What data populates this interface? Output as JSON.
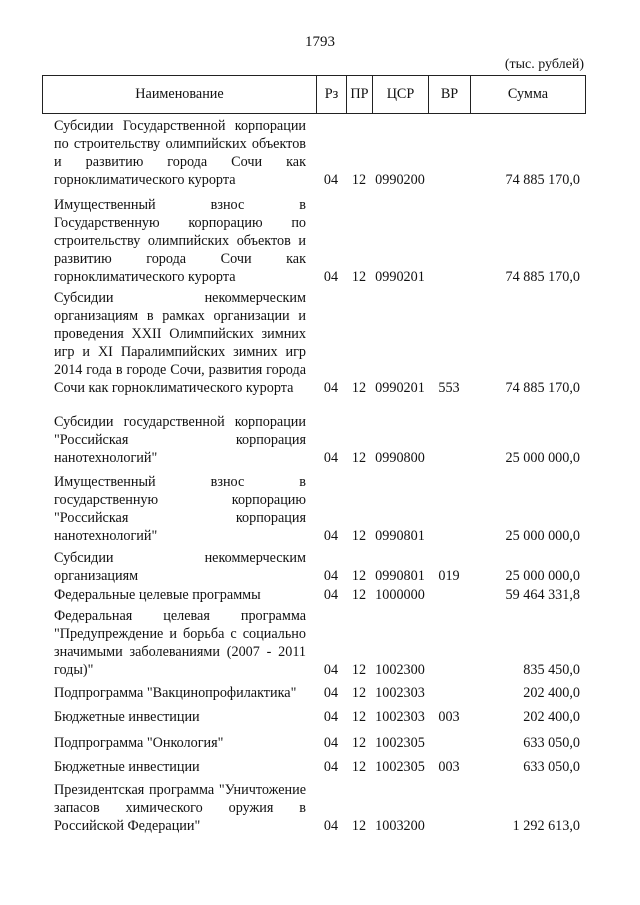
{
  "page_number": "1793",
  "units": "(тыс. рублей)",
  "table": {
    "headers": {
      "name": "Наименование",
      "rz": "Рз",
      "pr": "ПР",
      "csr": "ЦСР",
      "vr": "ВР",
      "sum": "Сумма"
    },
    "rows": [
      {
        "name": "Субсидии Государственной корпорации по строительству олимпийских объектов и развитию города Сочи как горноклиматического курорта",
        "rz": "04",
        "pr": "12",
        "csr": "0990200",
        "vr": "",
        "sum": "74 885 170,0"
      },
      {
        "name": "Имущественный взнос в Государственную корпорацию по строительству олимпийских объектов и развитию города Сочи как горноклиматического курорта",
        "rz": "04",
        "pr": "12",
        "csr": "0990201",
        "vr": "",
        "sum": "74 885 170,0"
      },
      {
        "name": "Субсидии некоммерческим организациям в рамках организации и проведения XXII Олимпийских зимних игр и XI Паралимпийских зимних игр 2014 года в городе Сочи, развития города Сочи как горноклиматического курорта",
        "rz": "04",
        "pr": "12",
        "csr": "0990201",
        "vr": "553",
        "sum": "74 885 170,0"
      },
      {
        "name": "Субсидии государственной корпорации \"Российская корпорация нанотехнологий\"",
        "rz": "04",
        "pr": "12",
        "csr": "0990800",
        "vr": "",
        "sum": "25 000 000,0"
      },
      {
        "name": "Имущественный взнос в государственную корпорацию \"Российская корпорация нанотехнологий\"",
        "rz": "04",
        "pr": "12",
        "csr": "0990801",
        "vr": "",
        "sum": "25 000 000,0"
      },
      {
        "name": "Субсидии некоммерческим организациям",
        "rz": "04",
        "pr": "12",
        "csr": "0990801",
        "vr": "019",
        "sum": "25 000 000,0"
      },
      {
        "name": "Федеральные целевые программы",
        "rz": "04",
        "pr": "12",
        "csr": "1000000",
        "vr": "",
        "sum": "59 464 331,8"
      },
      {
        "name": "Федеральная целевая программа \"Предупреждение и борьба с социально значимыми заболеваниями (2007 - 2011 годы)\"",
        "rz": "04",
        "pr": "12",
        "csr": "1002300",
        "vr": "",
        "sum": "835 450,0"
      },
      {
        "name": "Подпрограмма \"Вакцинопрофилактика\"",
        "rz": "04",
        "pr": "12",
        "csr": "1002303",
        "vr": "",
        "sum": "202 400,0"
      },
      {
        "name": "Бюджетные инвестиции",
        "rz": "04",
        "pr": "12",
        "csr": "1002303",
        "vr": "003",
        "sum": "202 400,0"
      },
      {
        "name": "Подпрограмма \"Онкология\"",
        "rz": "04",
        "pr": "12",
        "csr": "1002305",
        "vr": "",
        "sum": "633 050,0"
      },
      {
        "name": "Бюджетные инвестиции",
        "rz": "04",
        "pr": "12",
        "csr": "1002305",
        "vr": "003",
        "sum": "633 050,0"
      },
      {
        "name": "Президентская программа \"Уничтожение запасов химического оружия в Российской Федерации\"",
        "rz": "04",
        "pr": "12",
        "csr": "1003200",
        "vr": "",
        "sum": "1 292 613,0"
      }
    ]
  }
}
